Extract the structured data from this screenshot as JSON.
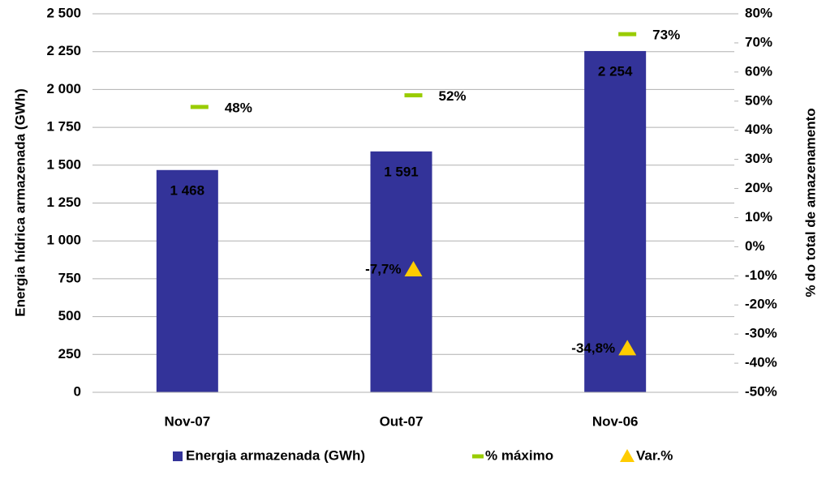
{
  "chart_data": {
    "type": "bar",
    "categories": [
      "Nov-07",
      "Out-07",
      "Nov-06"
    ],
    "series": [
      {
        "name": "Energia armazenada (GWh)",
        "type": "bar",
        "color": "#333399",
        "values": [
          1468,
          1591,
          2254
        ],
        "value_labels": [
          "1 468",
          "1 591",
          "2 254"
        ]
      },
      {
        "name": "% máximo",
        "type": "dash",
        "axis": "y2",
        "color": "#99cc00",
        "values": [
          48,
          52,
          73
        ],
        "value_labels": [
          "48%",
          "52%",
          "73%"
        ]
      },
      {
        "name": "Var.%",
        "type": "triangle",
        "axis": "y2",
        "color": "#ffcc00",
        "values": [
          null,
          -7.7,
          -34.8
        ],
        "value_labels": [
          null,
          "-7,7%",
          "-34,8%"
        ]
      }
    ],
    "ylabel": "Energia hídrica armazenada (GWh)",
    "y2label": "% do total de amazenamento",
    "ylim": [
      0,
      2500
    ],
    "yticks": [
      0,
      250,
      500,
      750,
      {
        "value": 1000,
        "label": "1 000"
      },
      {
        "value": 1250,
        "label": "1 250"
      },
      {
        "value": 1500,
        "label": "1 500"
      },
      {
        "value": 1750,
        "label": "1 750"
      },
      {
        "value": 2000,
        "label": "2 000"
      },
      {
        "value": 2250,
        "label": "2 250"
      },
      {
        "value": 2500,
        "label": "2 500"
      }
    ],
    "y2lim": [
      -50,
      80
    ],
    "y2ticks": [
      {
        "value": -50,
        "label": "-50%"
      },
      {
        "value": -40,
        "label": "-40%"
      },
      {
        "value": -30,
        "label": "-30%"
      },
      {
        "value": -20,
        "label": "-20%"
      },
      {
        "value": -10,
        "label": "-10%"
      },
      {
        "value": 0,
        "label": "0%"
      },
      {
        "value": 10,
        "label": "10%"
      },
      {
        "value": 20,
        "label": "20%"
      },
      {
        "value": 30,
        "label": "30%"
      },
      {
        "value": 40,
        "label": "40%"
      },
      {
        "value": 50,
        "label": "50%"
      },
      {
        "value": 60,
        "label": "60%"
      },
      {
        "value": 70,
        "label": "70%"
      },
      {
        "value": 80,
        "label": "80%"
      }
    ],
    "grid": true,
    "legend": "bottom"
  }
}
